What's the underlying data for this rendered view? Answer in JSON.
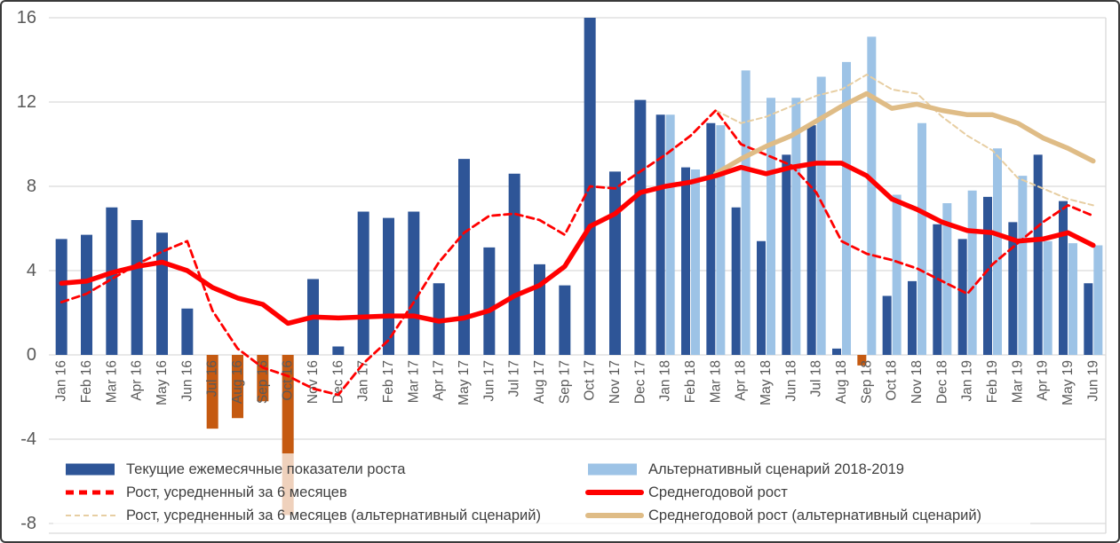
{
  "chart_data": {
    "type": "combo",
    "categories": [
      "Jan 16",
      "Feb 16",
      "Mar 16",
      "Apr 16",
      "May 16",
      "Jun 16",
      "Jul 16",
      "Aug 16",
      "Sep 16",
      "Oct 16",
      "Nov 16",
      "Dec 16",
      "Jan 17",
      "Feb 17",
      "Mar 17",
      "Apr 17",
      "May 17",
      "Jun 17",
      "Jul 17",
      "Aug 17",
      "Sep 17",
      "Oct 17",
      "Nov 17",
      "Dec 17",
      "Jan 18",
      "Feb 18",
      "Mar 18",
      "Apr 18",
      "May 18",
      "Jun 18",
      "Jul 18",
      "Aug 18",
      "Sep 18",
      "Oct 18",
      "Nov 18",
      "Dec 18",
      "Jan 19",
      "Feb 19",
      "Mar 19",
      "Apr 19",
      "May 19",
      "Jun 19"
    ],
    "y_axis": {
      "ticks": [
        16,
        12,
        8,
        4,
        0,
        -4,
        -8
      ],
      "min": -8,
      "max": 16,
      "grid": true
    },
    "series": [
      {
        "name": "Текущие ежемесячные показатели роста",
        "type": "bar",
        "color_key": "dark_blue",
        "negative_color_key": "orange",
        "values": [
          5.5,
          5.7,
          7.0,
          6.4,
          5.8,
          2.2,
          -3.5,
          -3.0,
          -2.2,
          -7.6,
          3.6,
          0.4,
          6.8,
          6.5,
          6.8,
          3.4,
          9.3,
          5.1,
          8.6,
          4.3,
          3.3,
          16.0,
          8.7,
          12.1,
          11.4,
          8.9,
          11.0,
          7.0,
          5.4,
          9.5,
          10.9,
          0.3,
          -0.5,
          2.8,
          3.5,
          6.2,
          5.5,
          7.5,
          6.3,
          9.5,
          7.3,
          3.4
        ]
      },
      {
        "name": "Альтернативный сценарий 2018-2019",
        "type": "bar",
        "color_key": "light_blue",
        "values": [
          null,
          null,
          null,
          null,
          null,
          null,
          null,
          null,
          null,
          null,
          null,
          null,
          null,
          null,
          null,
          null,
          null,
          null,
          null,
          null,
          null,
          null,
          null,
          null,
          11.4,
          8.8,
          10.9,
          13.5,
          12.2,
          12.2,
          13.2,
          13.9,
          15.1,
          7.6,
          11.0,
          7.2,
          7.8,
          9.8,
          8.5,
          5.4,
          5.3,
          5.2
        ]
      },
      {
        "name": "Рост, усредненный за 6 месяцев",
        "type": "line-dashed",
        "color_key": "red",
        "values": [
          2.5,
          2.9,
          3.6,
          4.3,
          4.9,
          5.4,
          2.1,
          0.3,
          -0.6,
          -1.0,
          -1.6,
          -1.9,
          -0.4,
          0.7,
          2.5,
          4.4,
          5.8,
          6.6,
          6.7,
          6.4,
          5.7,
          8.0,
          7.9,
          8.7,
          9.5,
          10.4,
          11.6,
          10.0,
          9.5,
          9.0,
          7.7,
          5.4,
          4.8,
          4.5,
          4.1,
          3.5,
          2.9,
          4.3,
          5.3,
          6.3,
          7.1,
          6.6
        ]
      },
      {
        "name": "Среднегодовой рост",
        "type": "line",
        "color_key": "red",
        "values": [
          3.4,
          3.5,
          3.9,
          4.2,
          4.4,
          4.0,
          3.2,
          2.7,
          2.4,
          1.5,
          1.8,
          1.75,
          1.8,
          1.85,
          1.85,
          1.6,
          1.75,
          2.1,
          2.8,
          3.3,
          4.2,
          6.1,
          6.7,
          7.7,
          8.0,
          8.2,
          8.5,
          8.9,
          8.6,
          8.9,
          9.1,
          9.1,
          8.5,
          7.4,
          6.9,
          6.3,
          5.9,
          5.8,
          5.4,
          5.5,
          5.8,
          5.2
        ]
      },
      {
        "name": "Рост, усредненный за 6 месяцев (альтернативный сценарий)",
        "type": "line-dashed-thin",
        "color_key": "tan_light",
        "values": [
          null,
          null,
          null,
          null,
          null,
          null,
          null,
          null,
          null,
          null,
          null,
          null,
          null,
          null,
          null,
          null,
          null,
          null,
          null,
          null,
          null,
          null,
          null,
          null,
          null,
          null,
          11.6,
          11.0,
          11.3,
          11.8,
          12.3,
          12.6,
          13.3,
          12.6,
          12.4,
          11.3,
          10.4,
          9.7,
          8.4,
          7.9,
          7.4,
          7.1
        ]
      },
      {
        "name": "Среднегодовой рост (альтернативный сценарий)",
        "type": "line",
        "color_key": "tan",
        "values": [
          null,
          null,
          null,
          null,
          null,
          null,
          null,
          null,
          null,
          null,
          null,
          null,
          null,
          null,
          null,
          null,
          null,
          null,
          null,
          null,
          null,
          null,
          null,
          null,
          null,
          null,
          8.6,
          9.3,
          9.9,
          10.4,
          11.1,
          11.8,
          12.4,
          11.7,
          11.9,
          11.6,
          11.4,
          11.4,
          11.0,
          10.3,
          9.8,
          9.2
        ]
      }
    ],
    "legend": {
      "position": "bottom-overlay",
      "left_column": [
        {
          "swatch": "bar-dark",
          "label": "Текущие ежемесячные показатели роста"
        },
        {
          "swatch": "dash-red",
          "label": "Рост, усредненный за 6 месяцев"
        },
        {
          "swatch": "dash-tan",
          "label": "Рост, усредненный за 6 месяцев (альтернативный сценарий)"
        }
      ],
      "right_column": [
        {
          "swatch": "bar-light",
          "label": "Альтернативный сценарий 2018-2019"
        },
        {
          "swatch": "line-red",
          "label": "Среднегодовой рост"
        },
        {
          "swatch": "line-tan",
          "label": "Среднегодовой рост (альтернативный сценарий)"
        }
      ]
    },
    "colors": {
      "dark_blue": "#2E5597",
      "light_blue": "#9DC3E6",
      "orange": "#C55A11",
      "red": "#FF0000",
      "tan": "#DFBC86",
      "tan_light": "#E7CEA2",
      "gridline": "#D9D9D9",
      "axis_text": "#595959",
      "legend_text": "#404040"
    }
  }
}
